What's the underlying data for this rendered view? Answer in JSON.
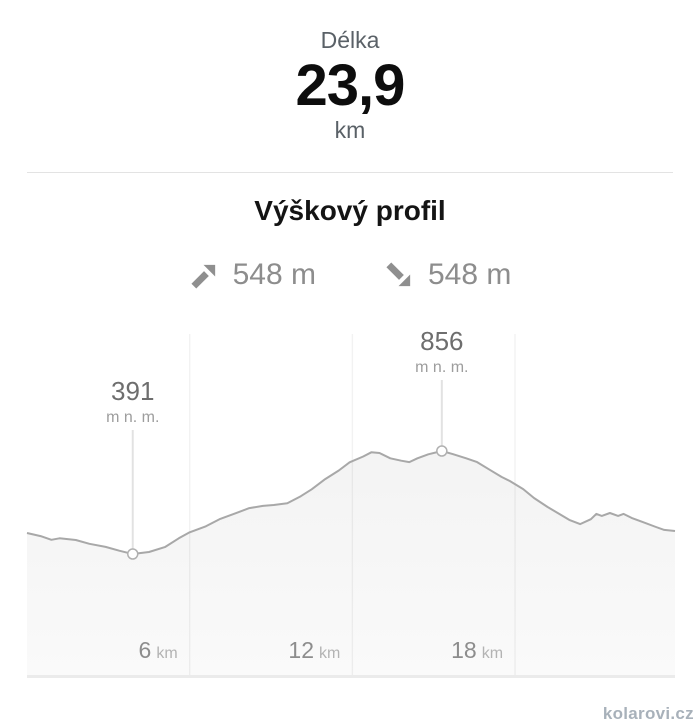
{
  "page": {
    "background": "#ffffff",
    "watermark": "kolarovi.cz"
  },
  "summary": {
    "label": "Délka",
    "value": "23,9",
    "unit": "km"
  },
  "profile_section": {
    "title": "Výškový profil",
    "ascent": {
      "icon": "arrow-up-right-icon",
      "value": "548 m"
    },
    "descent": {
      "icon": "arrow-down-right-icon",
      "value": "548 m"
    }
  },
  "chart_data": {
    "type": "area",
    "title": "Výškový profil",
    "xlabel": "km",
    "ylabel": "m n. m.",
    "x_range": [
      0,
      23.9
    ],
    "grid": true,
    "legend": "none",
    "line_color": "#a8a8a8",
    "fill_color_top": "#f3f3f3",
    "fill_color_bottom": "#fafafa",
    "x_ticks": [
      {
        "value": 6,
        "label": "6",
        "unit": "km"
      },
      {
        "value": 12,
        "label": "12",
        "unit": "km"
      },
      {
        "value": 18,
        "label": "18",
        "unit": "km"
      }
    ],
    "min_marker": {
      "x_km": 3.9,
      "elevation_m": 391,
      "label": "391",
      "sublabel": "m n. m."
    },
    "max_marker": {
      "x_km": 15.3,
      "elevation_m": 856,
      "label": "856",
      "sublabel": "m n. m."
    },
    "points": [
      [
        0,
        486
      ],
      [
        0.5,
        472
      ],
      [
        0.9,
        455
      ],
      [
        1.2,
        462
      ],
      [
        1.8,
        454
      ],
      [
        2.3,
        437
      ],
      [
        2.9,
        423
      ],
      [
        3.4,
        406
      ],
      [
        3.9,
        391
      ],
      [
        4.5,
        400
      ],
      [
        5.1,
        423
      ],
      [
        5.6,
        462
      ],
      [
        6.0,
        489
      ],
      [
        6.6,
        516
      ],
      [
        7.1,
        548
      ],
      [
        7.7,
        575
      ],
      [
        8.2,
        598
      ],
      [
        8.7,
        608
      ],
      [
        9.1,
        612
      ],
      [
        9.6,
        620
      ],
      [
        10.1,
        652
      ],
      [
        10.5,
        683
      ],
      [
        11.0,
        729
      ],
      [
        11.5,
        768
      ],
      [
        11.9,
        805
      ],
      [
        12.4,
        831
      ],
      [
        12.7,
        850
      ],
      [
        13.0,
        847
      ],
      [
        13.4,
        823
      ],
      [
        13.8,
        812
      ],
      [
        14.1,
        806
      ],
      [
        14.4,
        823
      ],
      [
        14.8,
        841
      ],
      [
        15.3,
        856
      ],
      [
        15.7,
        842
      ],
      [
        16.2,
        823
      ],
      [
        16.6,
        806
      ],
      [
        17.1,
        769
      ],
      [
        17.5,
        739
      ],
      [
        17.8,
        721
      ],
      [
        18.3,
        684
      ],
      [
        18.7,
        644
      ],
      [
        19.2,
        603
      ],
      [
        19.7,
        567
      ],
      [
        20.0,
        545
      ],
      [
        20.4,
        526
      ],
      [
        20.8,
        548
      ],
      [
        21.0,
        572
      ],
      [
        21.2,
        563
      ],
      [
        21.5,
        576
      ],
      [
        21.8,
        563
      ],
      [
        22.0,
        572
      ],
      [
        22.3,
        554
      ],
      [
        22.7,
        536
      ],
      [
        23.2,
        513
      ],
      [
        23.5,
        500
      ],
      [
        23.9,
        495
      ]
    ]
  }
}
